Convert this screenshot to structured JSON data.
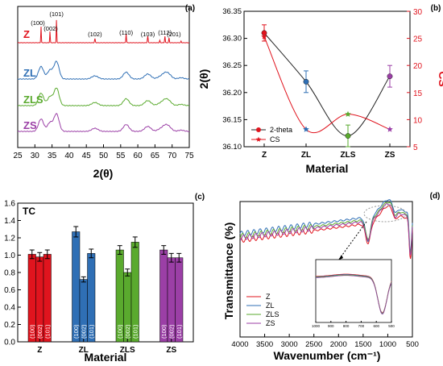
{
  "panels": [
    {
      "id": "a",
      "panel_label": "(a)",
      "chart_data": {
        "type": "line",
        "xlabel": "2(θ)",
        "xlim": [
          25,
          75
        ],
        "xticks": [
          25,
          30,
          35,
          40,
          45,
          50,
          55,
          60,
          65,
          70,
          75
        ],
        "series": [
          {
            "name": "Z",
            "color": "#e0141e"
          },
          {
            "name": "ZL",
            "color": "#2f6fb5"
          },
          {
            "name": "ZLS",
            "color": "#5aaa2e"
          },
          {
            "name": "ZS",
            "color": "#9b3fa6"
          }
        ],
        "peaks": [
          {
            "label": "(100)",
            "x": 31.8
          },
          {
            "label": "(002)",
            "x": 34.4
          },
          {
            "label": "(101)",
            "x": 36.3
          },
          {
            "label": "(102)",
            "x": 47.5
          },
          {
            "label": "(110)",
            "x": 56.6
          },
          {
            "label": "(103)",
            "x": 62.9
          },
          {
            "label": "(112)",
            "x": 67.9
          },
          {
            "label": "(201)",
            "x": 69.1
          }
        ]
      }
    },
    {
      "id": "b",
      "panel_label": "(b)",
      "chart_data": {
        "type": "line",
        "categories": [
          "Z",
          "ZL",
          "ZLS",
          "ZS"
        ],
        "xlabel": "Material",
        "ylabel": "2(θ)",
        "ylabel_right": "CS",
        "ylim": [
          36.1,
          36.35
        ],
        "yticks": [
          36.1,
          36.15,
          36.2,
          36.25,
          36.3,
          36.35
        ],
        "ylim_right": [
          5,
          30
        ],
        "yticks_right": [
          5,
          10,
          15,
          20,
          25,
          30
        ],
        "series": [
          {
            "name": "2-theta",
            "values": [
              36.31,
              36.22,
              36.12,
              36.23
            ],
            "errors": [
              0.015,
              0.02,
              0.02,
              0.02
            ],
            "colors": [
              "#e0141e",
              "#2f6fb5",
              "#5aaa2e",
              "#9b3fa6"
            ],
            "marker": "circle"
          },
          {
            "name": "CS",
            "values": [
              25.3,
              8.2,
              11.0,
              8.2
            ],
            "colors": [
              "#e0141e",
              "#2f6fb5",
              "#5aaa2e",
              "#9b3fa6"
            ],
            "marker": "star"
          }
        ],
        "legend_position": "bottom-left"
      }
    },
    {
      "id": "c",
      "panel_label": "(c)",
      "chart_data": {
        "type": "bar",
        "title": "TC",
        "categories": [
          "Z",
          "ZL",
          "ZLS",
          "ZS"
        ],
        "xlabel": "Material",
        "ylim": [
          0,
          1.6
        ],
        "yticks": [
          0.0,
          0.2,
          0.4,
          0.6,
          0.8,
          1.0,
          1.2,
          1.4,
          1.6
        ],
        "bar_labels": [
          "(100)",
          "(002)",
          "(101)"
        ],
        "colors": [
          "#e0141e",
          "#2f6fb5",
          "#5aaa2e",
          "#9b3fa6"
        ],
        "values": [
          [
            1.01,
            0.98,
            1.01
          ],
          [
            1.27,
            0.72,
            1.02
          ],
          [
            1.06,
            0.8,
            1.15
          ],
          [
            1.06,
            0.97,
            0.97
          ]
        ],
        "errors": [
          [
            0.05,
            0.05,
            0.05
          ],
          [
            0.06,
            0.03,
            0.05
          ],
          [
            0.05,
            0.04,
            0.06
          ],
          [
            0.05,
            0.05,
            0.05
          ]
        ]
      }
    },
    {
      "id": "d",
      "panel_label": "(d)",
      "chart_data": {
        "type": "line",
        "xlabel": "Wavenumber (cm⁻¹)",
        "ylabel": "Transmittance (%)",
        "xlim": [
          4000,
          500
        ],
        "xticks": [
          4000,
          3500,
          3000,
          2500,
          2000,
          1500,
          1000,
          500
        ],
        "inset_xticks": [
          1000,
          900,
          800,
          700,
          600,
          500
        ],
        "series": [
          {
            "name": "Z",
            "color": "#e0141e"
          },
          {
            "name": "ZL",
            "color": "#2f6fb5"
          },
          {
            "name": "ZLS",
            "color": "#5aaa2e"
          },
          {
            "name": "ZS",
            "color": "#9b3fa6"
          }
        ],
        "legend_position": "bottom-left"
      }
    }
  ]
}
